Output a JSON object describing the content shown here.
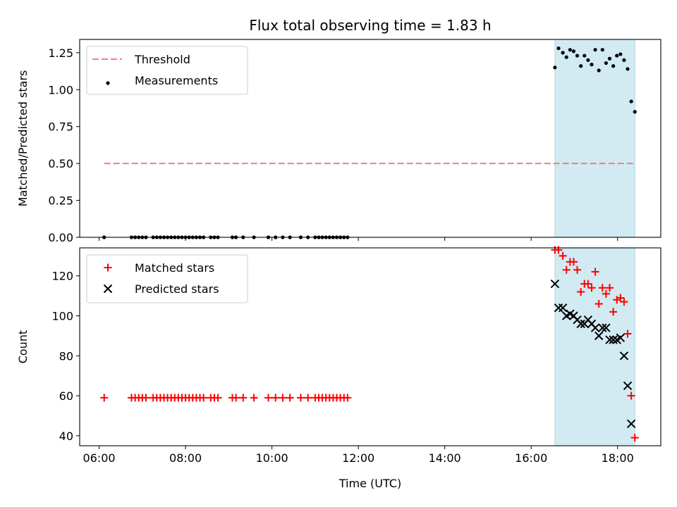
{
  "chart_data": {
    "type": "scatter",
    "title": "Flux total observing time = 1.83 h",
    "xlabel": "Time (UTC)",
    "x_unit": "hours UTC",
    "xlim": [
      5.55,
      19.0
    ],
    "x_ticks": [
      "06:00",
      "08:00",
      "10:00",
      "12:00",
      "14:00",
      "16:00",
      "18:00"
    ],
    "shaded_interval": [
      "16:33",
      "18:24"
    ],
    "shade_color": "#add8e6",
    "panels": [
      {
        "id": "ratio",
        "ylabel": "Matched/Predicted stars",
        "ylim": [
          0.0,
          1.34
        ],
        "y_ticks": [
          "0.00",
          "0.25",
          "0.50",
          "0.75",
          "1.00",
          "1.25"
        ],
        "legend": "top-left",
        "threshold": {
          "name": "Threshold",
          "value": 0.5,
          "x_range": [
            "06:07",
            "18:24"
          ],
          "color": "#f08080"
        },
        "series": [
          {
            "name": "Measurements",
            "marker": "dot",
            "color": "#000000",
            "points": [
              [
                "06:07",
                0
              ],
              [
                "06:45",
                0
              ],
              [
                "06:50",
                0
              ],
              [
                "06:55",
                0
              ],
              [
                "07:00",
                0
              ],
              [
                "07:05",
                0
              ],
              [
                "07:15",
                0
              ],
              [
                "07:20",
                0
              ],
              [
                "07:25",
                0
              ],
              [
                "07:30",
                0
              ],
              [
                "07:35",
                0
              ],
              [
                "07:40",
                0
              ],
              [
                "07:45",
                0
              ],
              [
                "07:50",
                0
              ],
              [
                "07:55",
                0
              ],
              [
                "08:00",
                0
              ],
              [
                "08:05",
                0
              ],
              [
                "08:10",
                0
              ],
              [
                "08:15",
                0
              ],
              [
                "08:20",
                0
              ],
              [
                "08:25",
                0
              ],
              [
                "08:35",
                0
              ],
              [
                "08:40",
                0
              ],
              [
                "08:45",
                0
              ],
              [
                "09:05",
                0
              ],
              [
                "09:10",
                0
              ],
              [
                "09:20",
                0
              ],
              [
                "09:35",
                0
              ],
              [
                "09:55",
                0
              ],
              [
                "10:05",
                0
              ],
              [
                "10:15",
                0
              ],
              [
                "10:25",
                0
              ],
              [
                "10:40",
                0
              ],
              [
                "10:50",
                0
              ],
              [
                "11:00",
                0
              ],
              [
                "11:05",
                0
              ],
              [
                "11:10",
                0
              ],
              [
                "11:15",
                0
              ],
              [
                "11:20",
                0
              ],
              [
                "11:25",
                0
              ],
              [
                "11:30",
                0
              ],
              [
                "11:35",
                0
              ],
              [
                "11:40",
                0
              ],
              [
                "11:45",
                0
              ],
              [
                "16:33",
                1.15
              ],
              [
                "16:38",
                1.28
              ],
              [
                "16:44",
                1.25
              ],
              [
                "16:49",
                1.22
              ],
              [
                "16:54",
                1.27
              ],
              [
                "16:59",
                1.26
              ],
              [
                "17:04",
                1.23
              ],
              [
                "17:09",
                1.16
              ],
              [
                "17:14",
                1.23
              ],
              [
                "17:19",
                1.2
              ],
              [
                "17:24",
                1.17
              ],
              [
                "17:29",
                1.27
              ],
              [
                "17:34",
                1.13
              ],
              [
                "17:39",
                1.27
              ],
              [
                "17:44",
                1.18
              ],
              [
                "17:49",
                1.21
              ],
              [
                "17:54",
                1.16
              ],
              [
                "17:59",
                1.23
              ],
              [
                "18:04",
                1.24
              ],
              [
                "18:09",
                1.2
              ],
              [
                "18:14",
                1.14
              ],
              [
                "18:19",
                0.92
              ],
              [
                "18:24",
                0.85
              ]
            ]
          }
        ]
      },
      {
        "id": "counts",
        "ylabel": "Count",
        "ylim": [
          35,
          134
        ],
        "y_ticks": [
          "40",
          "60",
          "80",
          "100",
          "120"
        ],
        "legend": "top-left",
        "series": [
          {
            "name": "Matched stars",
            "marker": "plus",
            "color": "#ff0000",
            "points": [
              [
                "06:07",
                59
              ],
              [
                "06:45",
                59
              ],
              [
                "06:50",
                59
              ],
              [
                "06:55",
                59
              ],
              [
                "07:00",
                59
              ],
              [
                "07:05",
                59
              ],
              [
                "07:15",
                59
              ],
              [
                "07:20",
                59
              ],
              [
                "07:25",
                59
              ],
              [
                "07:30",
                59
              ],
              [
                "07:35",
                59
              ],
              [
                "07:40",
                59
              ],
              [
                "07:45",
                59
              ],
              [
                "07:50",
                59
              ],
              [
                "07:55",
                59
              ],
              [
                "08:00",
                59
              ],
              [
                "08:05",
                59
              ],
              [
                "08:10",
                59
              ],
              [
                "08:15",
                59
              ],
              [
                "08:20",
                59
              ],
              [
                "08:25",
                59
              ],
              [
                "08:35",
                59
              ],
              [
                "08:40",
                59
              ],
              [
                "08:45",
                59
              ],
              [
                "09:05",
                59
              ],
              [
                "09:10",
                59
              ],
              [
                "09:20",
                59
              ],
              [
                "09:35",
                59
              ],
              [
                "09:55",
                59
              ],
              [
                "10:05",
                59
              ],
              [
                "10:15",
                59
              ],
              [
                "10:25",
                59
              ],
              [
                "10:40",
                59
              ],
              [
                "10:50",
                59
              ],
              [
                "11:00",
                59
              ],
              [
                "11:05",
                59
              ],
              [
                "11:10",
                59
              ],
              [
                "11:15",
                59
              ],
              [
                "11:20",
                59
              ],
              [
                "11:25",
                59
              ],
              [
                "11:30",
                59
              ],
              [
                "11:35",
                59
              ],
              [
                "11:40",
                59
              ],
              [
                "11:45",
                59
              ],
              [
                "16:33",
                133
              ],
              [
                "16:38",
                133
              ],
              [
                "16:44",
                130
              ],
              [
                "16:49",
                123
              ],
              [
                "16:54",
                127
              ],
              [
                "16:59",
                127
              ],
              [
                "17:04",
                123
              ],
              [
                "17:09",
                112
              ],
              [
                "17:14",
                116
              ],
              [
                "17:19",
                116
              ],
              [
                "17:24",
                114
              ],
              [
                "17:29",
                122
              ],
              [
                "17:34",
                106
              ],
              [
                "17:39",
                114
              ],
              [
                "17:44",
                111
              ],
              [
                "17:49",
                114
              ],
              [
                "17:54",
                102
              ],
              [
                "17:59",
                108
              ],
              [
                "18:04",
                109
              ],
              [
                "18:09",
                107
              ],
              [
                "18:14",
                91
              ],
              [
                "18:19",
                60
              ],
              [
                "18:24",
                39
              ]
            ]
          },
          {
            "name": "Predicted stars",
            "marker": "x",
            "color": "#000000",
            "points": [
              [
                "16:33",
                116
              ],
              [
                "16:38",
                104
              ],
              [
                "16:44",
                104
              ],
              [
                "16:49",
                100
              ],
              [
                "16:54",
                101
              ],
              [
                "16:59",
                100
              ],
              [
                "17:04",
                98
              ],
              [
                "17:09",
                96
              ],
              [
                "17:14",
                96
              ],
              [
                "17:19",
                98
              ],
              [
                "17:24",
                96
              ],
              [
                "17:29",
                94
              ],
              [
                "17:34",
                90
              ],
              [
                "17:39",
                94
              ],
              [
                "17:44",
                94
              ],
              [
                "17:49",
                88
              ],
              [
                "17:54",
                88
              ],
              [
                "17:59",
                88
              ],
              [
                "18:04",
                89
              ],
              [
                "18:09",
                80
              ],
              [
                "18:14",
                65
              ],
              [
                "18:19",
                46
              ]
            ]
          }
        ]
      }
    ]
  }
}
